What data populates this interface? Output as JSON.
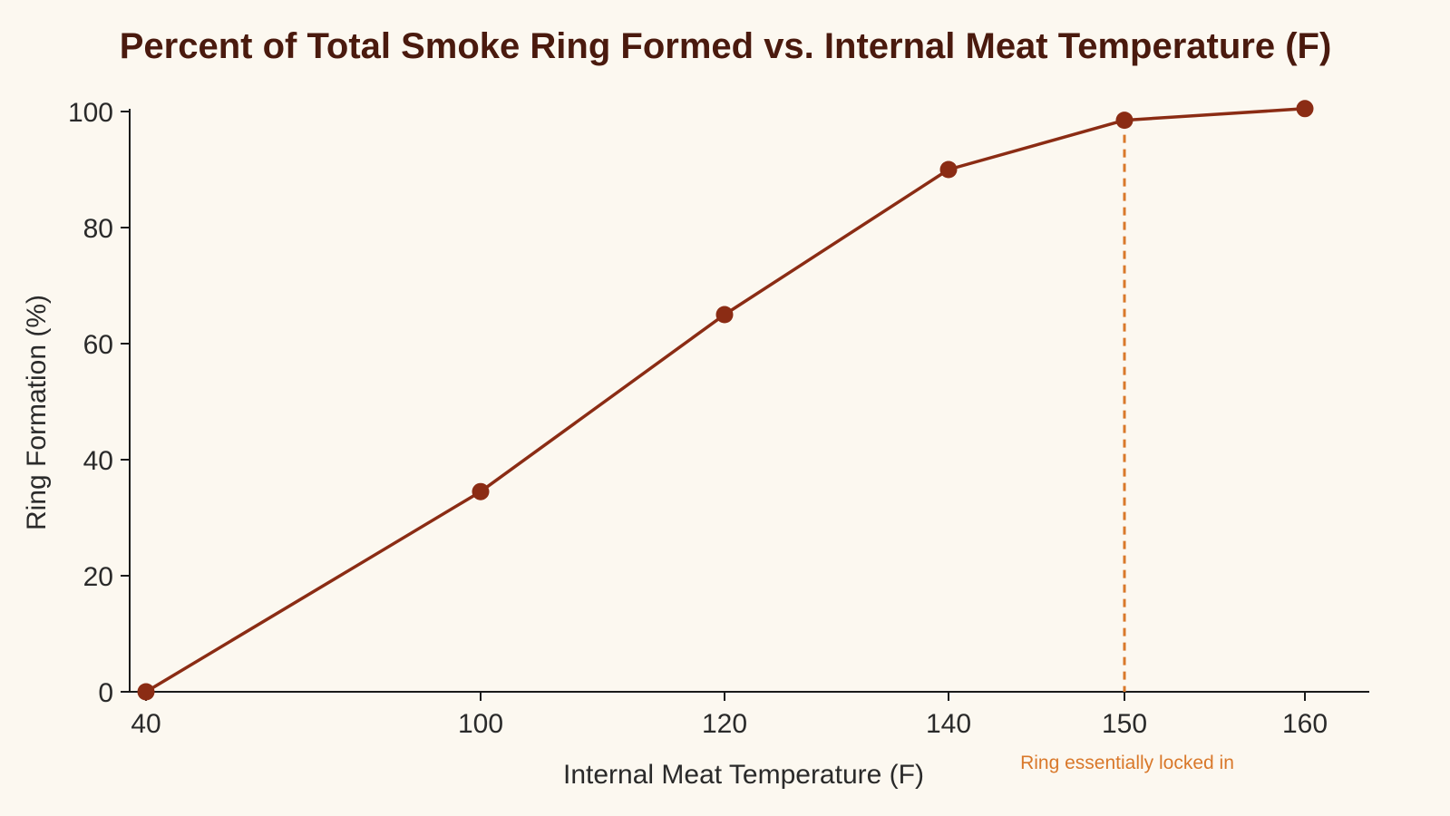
{
  "chart_data": {
    "type": "line",
    "title": "Percent of Total Smoke Ring Formed vs. Internal Meat Temperature (F)",
    "xlabel": "Internal Meat Temperature (F)",
    "ylabel": "Ring Formation (%)",
    "x_ticks": [
      "40",
      "100",
      "120",
      "140",
      "150",
      "160"
    ],
    "y_ticks": [
      "0",
      "20",
      "40",
      "60",
      "80",
      "100"
    ],
    "ylim": [
      0,
      100
    ],
    "grid": false,
    "series": [
      {
        "x": [
          40,
          100,
          120,
          140,
          150,
          160
        ],
        "values": [
          0,
          34.5,
          65,
          90,
          98.5,
          100.5
        ]
      }
    ],
    "annotations": [
      {
        "x": 150,
        "text": "Ring essentially locked in",
        "style": "dashed-vertical-line"
      }
    ],
    "colors": {
      "line": "#8b2c14",
      "marker": "#8b2c14",
      "annotation": "#d9782a",
      "axis": "#1a1a1a",
      "background": "#fcf8f0",
      "title": "#4a1a0e"
    }
  }
}
